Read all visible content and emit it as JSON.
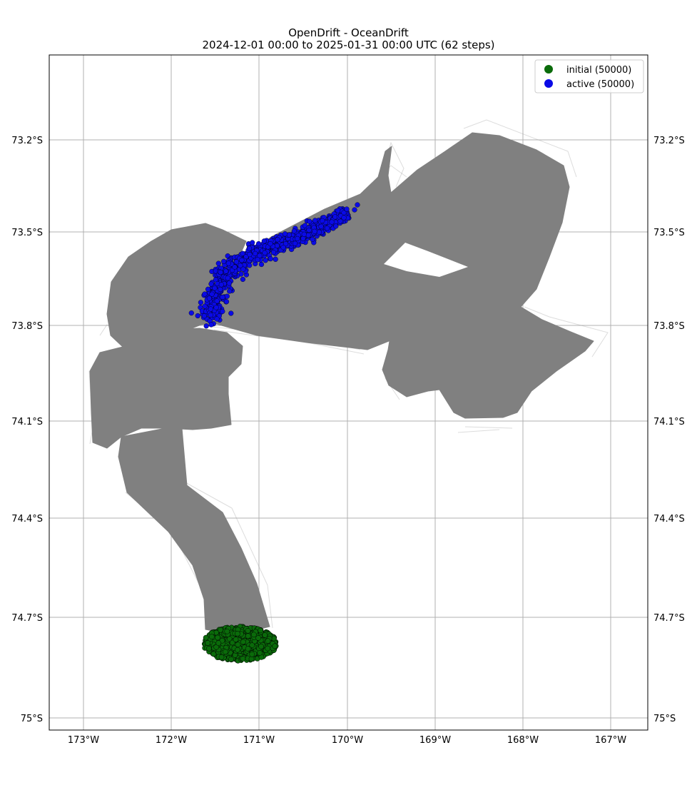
{
  "title": {
    "line1": "OpenDrift - OceanDrift",
    "line2": "2024-12-01 00:00 to 2025-01-31 00:00 UTC (62 steps)"
  },
  "map": {
    "lon_ticks": [
      "173°W",
      "172°W",
      "171°W",
      "170°W",
      "169°W",
      "168°W",
      "167°W"
    ],
    "lat_ticks": [
      "73.2°S",
      "73.5°S",
      "73.8°S",
      "74.1°S",
      "74.4°S",
      "74.7°S",
      "75°S"
    ],
    "xlim": [
      -173.4,
      -166.6
    ],
    "ylim": [
      -75.04,
      -72.93
    ],
    "grid": true
  },
  "legend": {
    "position": "upper-right",
    "items": [
      {
        "label": "initial (50000)",
        "color": "#0a6b0a"
      },
      {
        "label": "active (50000)",
        "color": "#0a0ae6"
      }
    ]
  },
  "colors": {
    "trajectory": "#808080",
    "initial": "#0a6b0a",
    "active": "#0a0ae6"
  },
  "chart_data": {
    "type": "scatter",
    "series": [
      {
        "name": "initial (50000)",
        "center": [
          -171.2,
          -74.79
        ],
        "count": 50000
      },
      {
        "name": "active (50000)",
        "extent_lon": [
          -171.55,
          -169.9
        ],
        "extent_lat": [
          -73.79,
          -73.4
        ],
        "count": 50000
      }
    ],
    "xlabel": "",
    "ylabel": ""
  }
}
